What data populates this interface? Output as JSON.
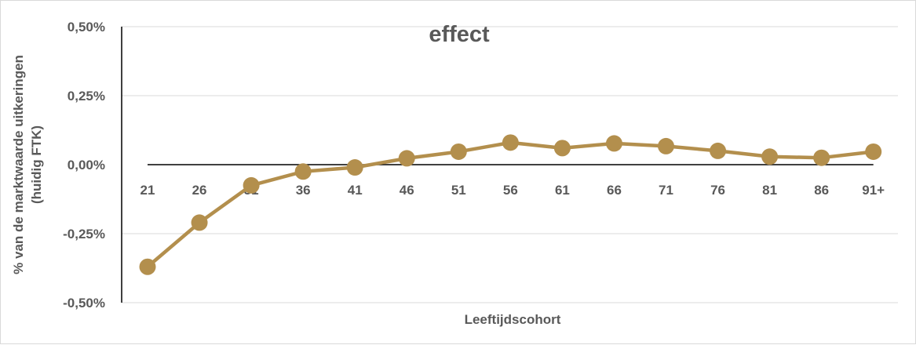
{
  "chart_data": {
    "type": "line",
    "title": "effect",
    "xlabel": "Leeftijdscohort",
    "ylabel_line1": "% van de marktwaarde uitkeringen",
    "ylabel_line2": "(huidig FTK)",
    "categories": [
      "21",
      "26",
      "31",
      "36",
      "41",
      "46",
      "51",
      "56",
      "61",
      "66",
      "71",
      "76",
      "81",
      "86",
      "91+"
    ],
    "series": [
      {
        "values": [
          -0.37,
          -0.21,
          -0.075,
          -0.025,
          -0.01,
          0.023,
          0.047,
          0.08,
          0.06,
          0.077,
          0.067,
          0.05,
          0.029,
          0.025,
          0.047
        ],
        "color": "#b38f4d"
      }
    ],
    "ylim": [
      -0.5,
      0.5
    ],
    "yticks": [
      0.5,
      0.25,
      0.0,
      -0.25,
      -0.5
    ],
    "ytick_labels": [
      "0,50%",
      "0,25%",
      "0,00%",
      "-0,25%",
      "-0,50%"
    ],
    "grid": true,
    "legend": "none"
  }
}
